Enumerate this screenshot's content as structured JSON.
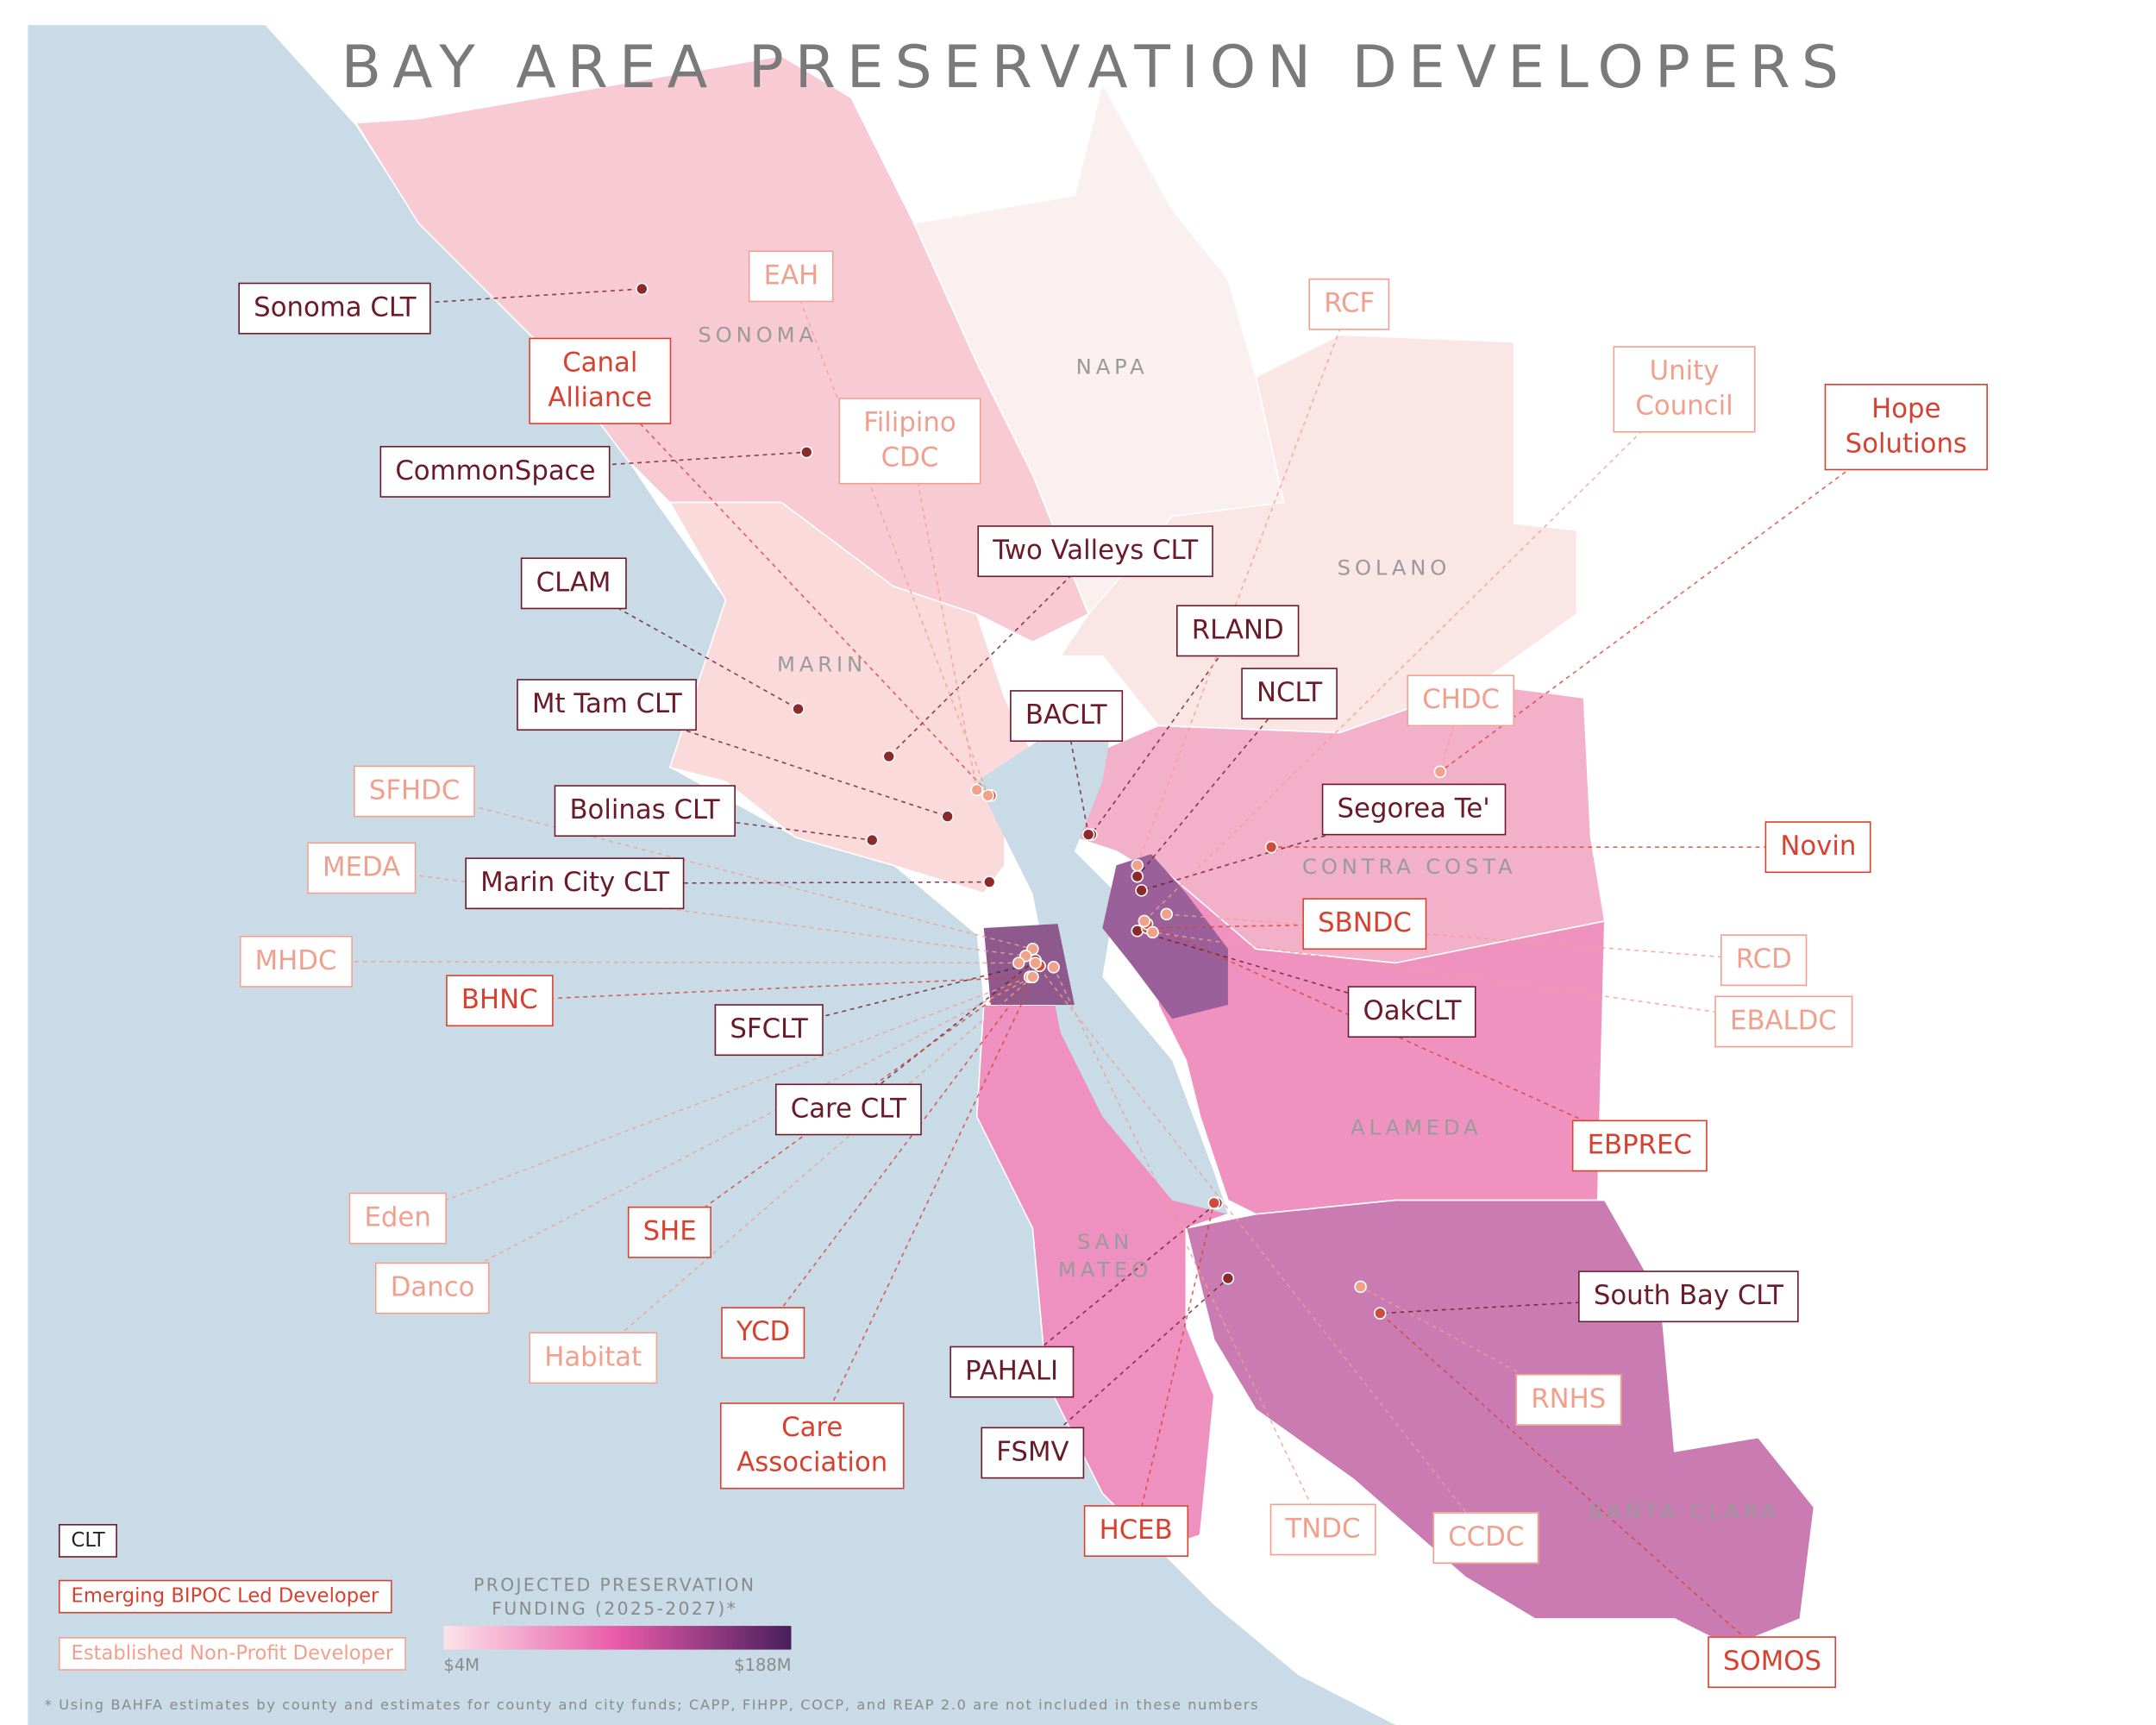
{
  "title": "BAY AREA PRESERVATION DEVELOPERS",
  "counties": [
    {
      "name": "SONOMA",
      "color": "#f8cad4"
    },
    {
      "name": "NAPA",
      "color": "#fbf0f0"
    },
    {
      "name": "SOLANO",
      "color": "#fbe6e6"
    },
    {
      "name": "MARIN",
      "color": "#fadada"
    },
    {
      "name": "CONTRA COSTA",
      "color": "#f3b0c9"
    },
    {
      "name": "ALAMEDA",
      "color": "#ef92c0"
    },
    {
      "name": "SAN MATEO",
      "color": "#ee90c0"
    },
    {
      "name": "SANTA CLARA",
      "color": "#c97bb2"
    }
  ],
  "developer_groups": [
    {
      "legend": "CLT",
      "color": "#6b1a2a",
      "dot_color": "#8b2a2a",
      "developers": [
        "Sonoma CLT",
        "CommonSpace",
        "Two Valleys CLT",
        "CLAM",
        "RLAND",
        "NCLT",
        "BACLT",
        "Mt Tam CLT",
        "Segorea Te'",
        "Bolinas CLT",
        "Marin City CLT",
        "OakCLT",
        "SFCLT",
        "Care CLT",
        "South Bay CLT",
        "PAHALI",
        "FSMV"
      ]
    },
    {
      "legend": "Emerging BIPOC Led Developer",
      "color": "#d8412f",
      "dot_color": "#d24a3a",
      "developers": [
        "Canal Alliance",
        "Hope Solutions",
        "Novin",
        "SBNDC",
        "BHNC",
        "EBPREC",
        "SHE",
        "YCD",
        "Care Association",
        "HCEB",
        "SOMOS"
      ]
    },
    {
      "legend": "Established Non-Profit Developer",
      "color": "#f2a08e",
      "dot_color": "#f3a28a",
      "developers": [
        "EAH",
        "Filipino CDC",
        "RCF",
        "Unity Council",
        "CHDC",
        "SFHDC",
        "MEDA",
        "MHDC",
        "RCD",
        "EBALDC",
        "Eden",
        "Danco",
        "Habitat",
        "RNHS",
        "TNDC",
        "CCDC"
      ]
    }
  ],
  "funding_legend": {
    "title": "PROJECTED PRESERVATION FUNDING (2025-2027)*",
    "min_label": "$4M",
    "max_label": "$188M",
    "colors": [
      "#fbe3e8",
      "#e85aa8",
      "#4a1f5c"
    ]
  },
  "footnote": "* Using BAHFA estimates by county and estimates for county and city funds; CAPP, FIHPP, COCP, and REAP 2.0 are not included in these numbers"
}
